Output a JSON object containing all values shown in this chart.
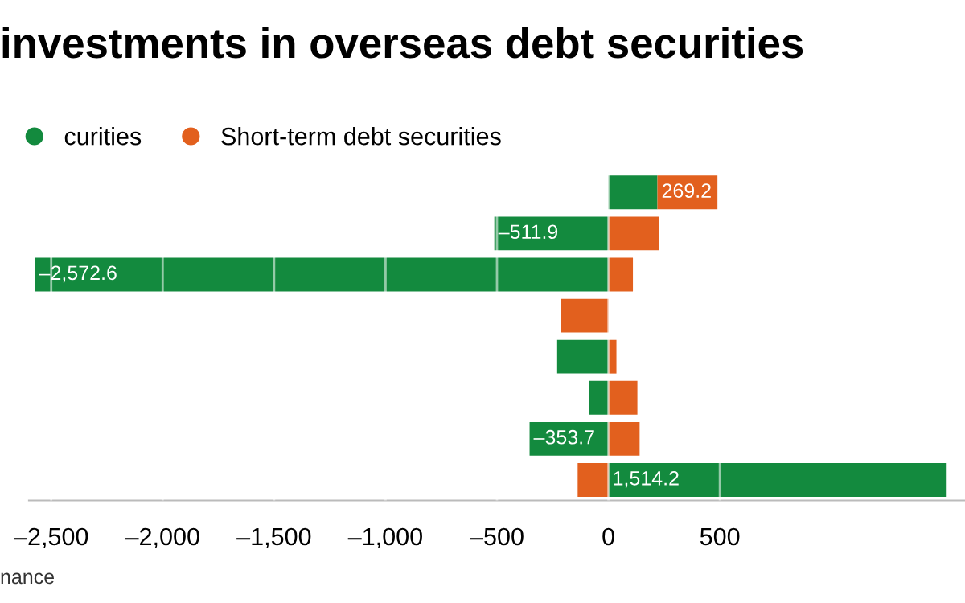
{
  "chart_data": {
    "type": "bar",
    "orientation": "horizontal",
    "stacked": true,
    "title": "investments in overseas debt securities",
    "annotations": [
      "nance"
    ],
    "categories": [
      null,
      null,
      null,
      null,
      null,
      null,
      null,
      null
    ],
    "series": [
      {
        "name": "curities",
        "color": "#138a3e",
        "values": [
          220,
          -511.9,
          -2572.6,
          null,
          -230,
          -86,
          -353.7,
          1514.2
        ],
        "value_labels": [
          null,
          "–511.9",
          "–2,572.6",
          null,
          null,
          null,
          "–353.7",
          "1,514.2"
        ]
      },
      {
        "name": "Short-term debt securities",
        "color": "#e2601e",
        "values": [
          269.2,
          228,
          110,
          -212,
          36,
          130,
          140,
          -138
        ],
        "value_labels": [
          "269.2",
          null,
          null,
          null,
          null,
          null,
          null,
          null
        ]
      }
    ],
    "xlim": [
      -2600,
      1600
    ],
    "xticks": [
      {
        "value": -2500,
        "label": "–2,500"
      },
      {
        "value": -2000,
        "label": "–2,000"
      },
      {
        "value": -1500,
        "label": "–1,500"
      },
      {
        "value": -1000,
        "label": "–1,000"
      },
      {
        "value": -500,
        "label": "–500"
      },
      0,
      500
    ],
    "grid": "x",
    "legend": "top left"
  }
}
